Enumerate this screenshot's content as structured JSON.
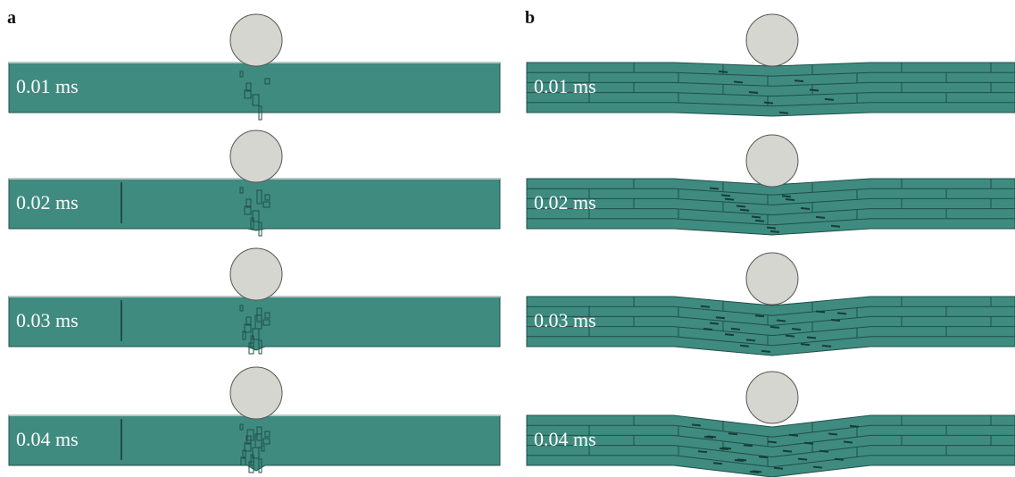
{
  "panels": [
    {
      "label": "a",
      "frames": [
        "0.01 ms",
        "0.02 ms",
        "0.03 ms",
        "0.04 ms"
      ]
    },
    {
      "label": "b",
      "frames": [
        "0.01 ms",
        "0.02 ms",
        "0.03 ms",
        "0.04 ms"
      ]
    }
  ]
}
